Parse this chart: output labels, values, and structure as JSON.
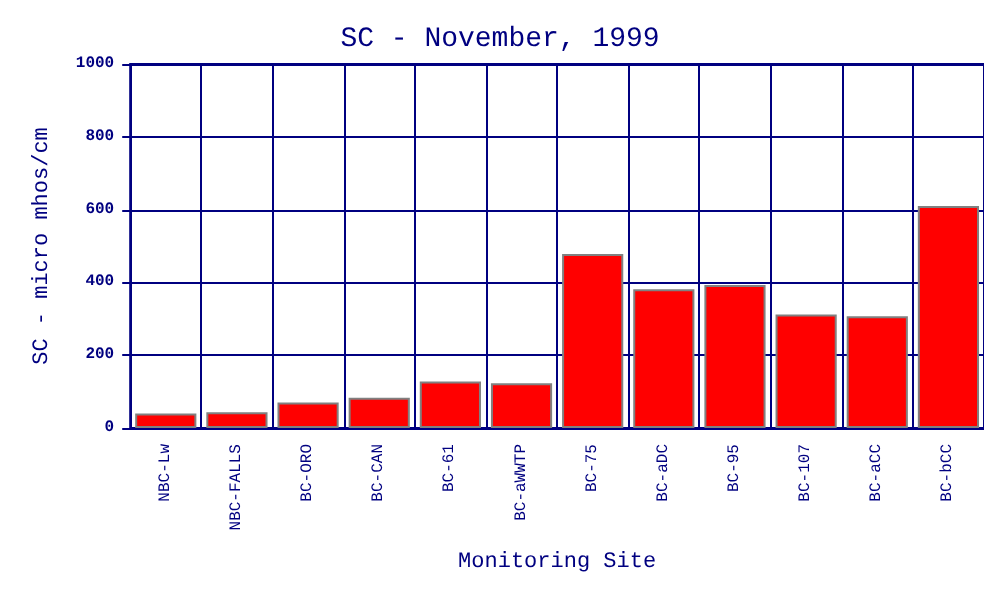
{
  "chart_data": {
    "type": "bar",
    "title": "SC - November, 1999",
    "xlabel": "Monitoring Site",
    "ylabel": "SC - micro mhos/cm",
    "categories": [
      "NBC-Lw",
      "NBC-FALLS",
      "BC-ORO",
      "BC-CAN",
      "BC-61",
      "BC-aWWTP",
      "BC-75",
      "BC-aDC",
      "BC-95",
      "BC-107",
      "BC-aCC",
      "BC-bCC"
    ],
    "values": [
      40,
      43,
      70,
      83,
      128,
      123,
      478,
      381,
      393,
      312,
      307,
      610
    ],
    "color": "#ff0000",
    "ylim": [
      0,
      1000
    ],
    "yticks": [
      0,
      200,
      400,
      600,
      800,
      1000
    ],
    "grid": true
  }
}
